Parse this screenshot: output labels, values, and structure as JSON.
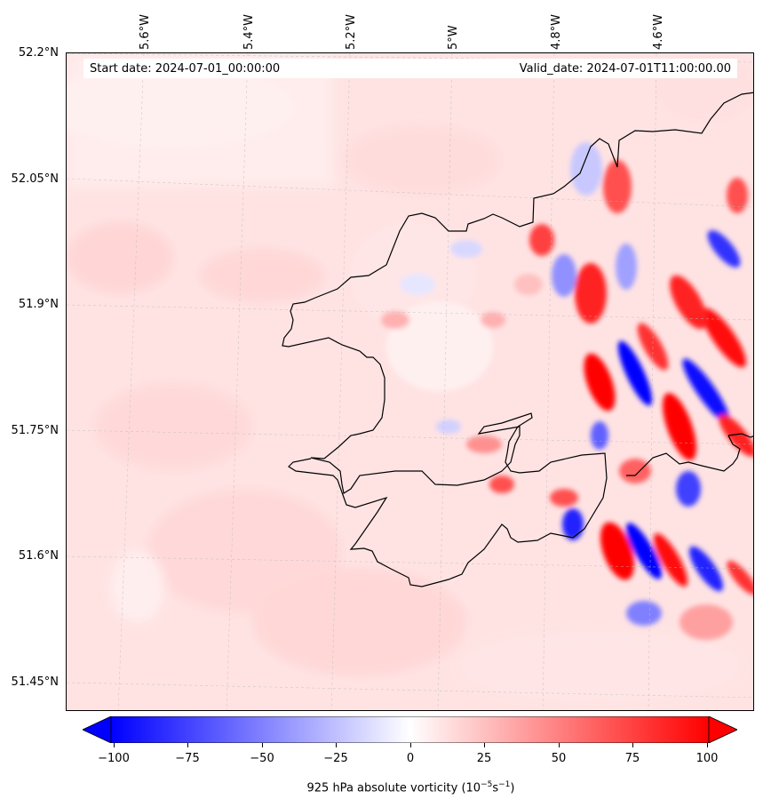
{
  "header": {
    "start_date": "Start date: 2024-07-01_00:00:00",
    "valid_date": "Valid_date: 2024-07-01T11:00:00.00"
  },
  "axes": {
    "lon_labels": [
      "5.6°W",
      "5.4°W",
      "5.2°W",
      "5°W",
      "4.8°W",
      "4.6°W"
    ],
    "lat_labels": [
      "52.2°N",
      "52.05°N",
      "51.9°N",
      "51.75°N",
      "51.6°N",
      "51.45°N"
    ]
  },
  "colorbar": {
    "ticks": [
      "−100",
      "−75",
      "−50",
      "−25",
      "0",
      "25",
      "50",
      "75",
      "100"
    ],
    "label_main": "925 hPa absolute vorticity (10",
    "label_exp1": "−5",
    "label_mid": "s",
    "label_exp2": "−1",
    "label_end": ")",
    "min": -100,
    "max": 100,
    "colors": {
      "low": "#0000ff",
      "mid": "#ffffff",
      "high": "#ff0000"
    }
  },
  "map": {
    "background_color": "#ffe3e3",
    "coastline_color": "#000000",
    "gridline_style": "dashed-grey"
  }
}
